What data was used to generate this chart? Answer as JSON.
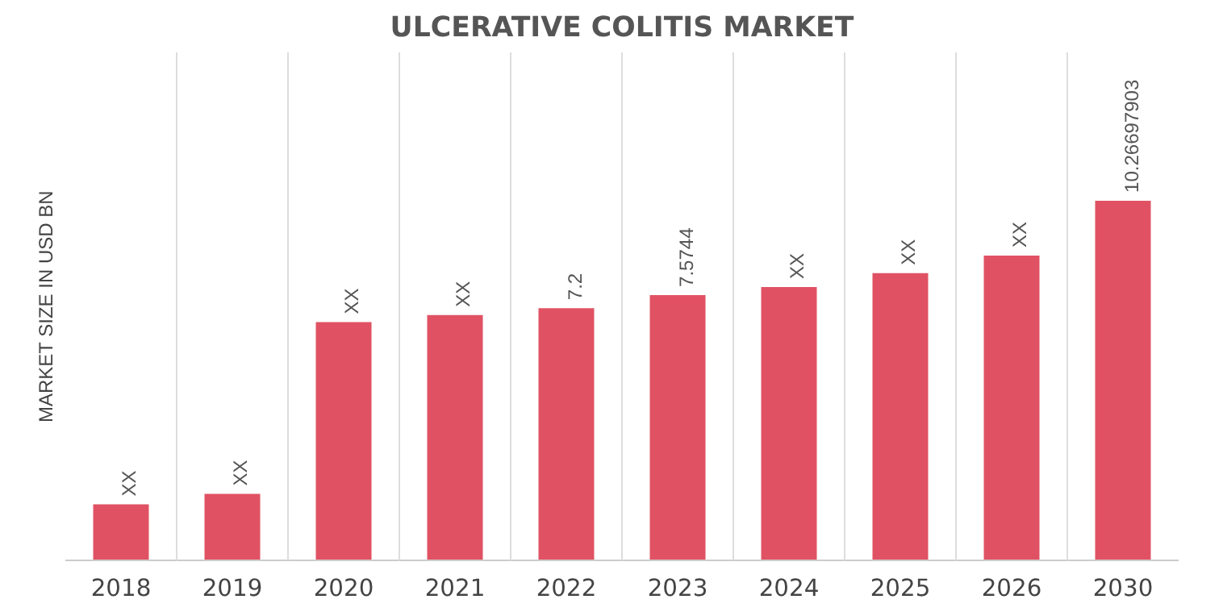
{
  "chart_data": {
    "type": "bar",
    "title": "ULCERATIVE COLITIS MARKET",
    "ylabel": "MARKET SIZE IN USD BN",
    "categories": [
      "2018",
      "2019",
      "2020",
      "2021",
      "2022",
      "2023",
      "2024",
      "2025",
      "2026",
      "2030"
    ],
    "values": [
      1.6,
      1.9,
      6.8,
      7.0,
      7.2,
      7.5744,
      7.8,
      8.2,
      8.7,
      10.26697903
    ],
    "value_labels": [
      "XX",
      "XX",
      "XX",
      "XX",
      "7.2",
      "7.5744",
      "XX",
      "XX",
      "XX",
      "10.26697903"
    ],
    "color": "#e05263",
    "ylim": [
      0,
      14.5
    ],
    "grid": "x",
    "tick_labels": "x"
  }
}
